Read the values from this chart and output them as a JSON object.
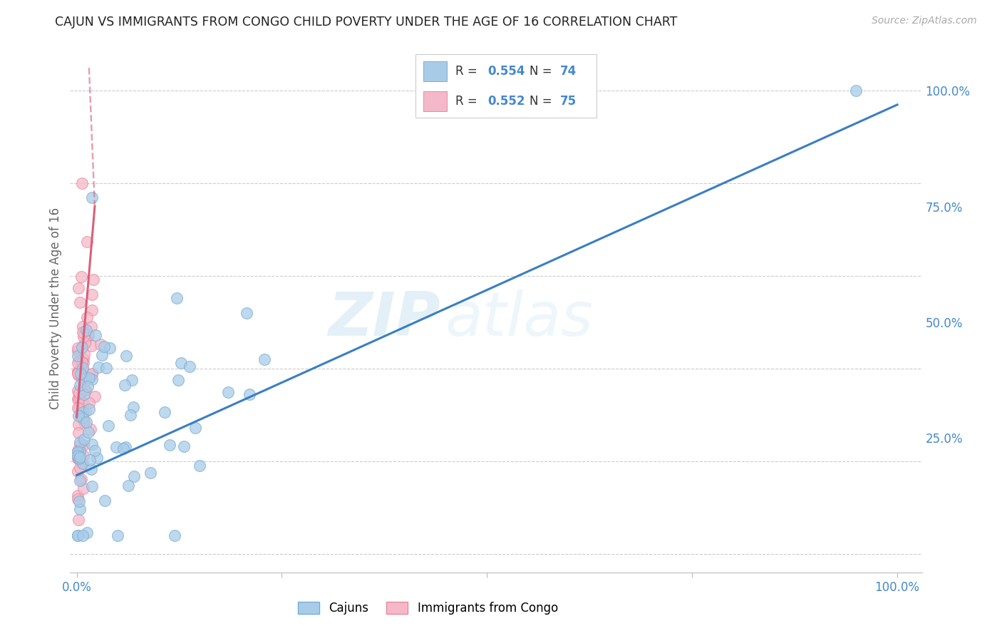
{
  "title": "CAJUN VS IMMIGRANTS FROM CONGO CHILD POVERTY UNDER THE AGE OF 16 CORRELATION CHART",
  "source": "Source: ZipAtlas.com",
  "ylabel": "Child Poverty Under the Age of 16",
  "cajun_color": "#a8cce8",
  "cajun_edge": "#7badd4",
  "congo_color": "#f5b8c8",
  "congo_edge": "#e88aa0",
  "trend_blue": "#3a7fc1",
  "trend_pink": "#d9607a",
  "R_cajun": "0.554",
  "N_cajun": "74",
  "R_congo": "0.552",
  "N_congo": "75",
  "watermark_zip": "ZIP",
  "watermark_atlas": "atlas",
  "background_color": "#ffffff",
  "grid_color": "#cccccc",
  "title_color": "#222222",
  "axis_label_color": "#4488cc",
  "ylabel_color": "#666666"
}
